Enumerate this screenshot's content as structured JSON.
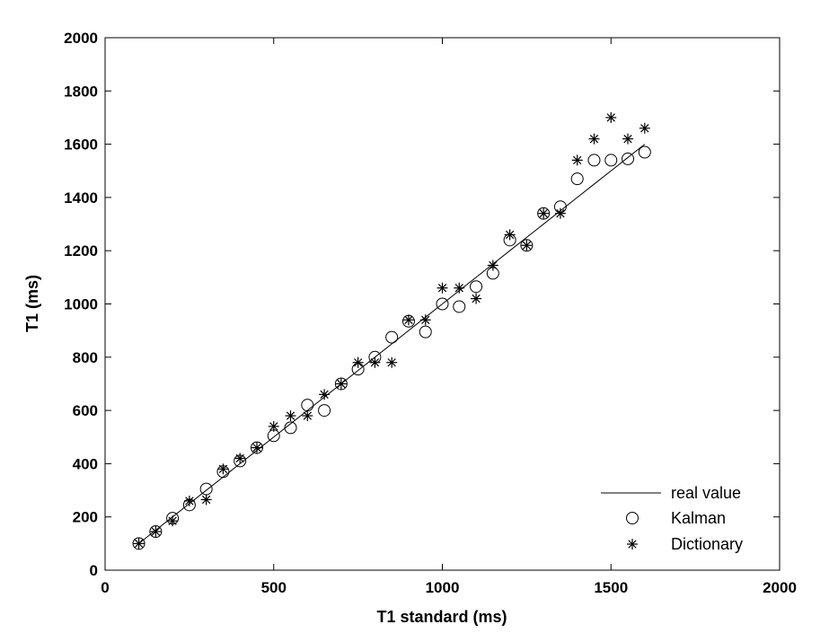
{
  "chart_data": {
    "type": "scatter",
    "xlabel": "T1 standard (ms)",
    "ylabel": "T1 (ms)",
    "xlim": [
      0,
      2000
    ],
    "ylim": [
      0,
      2000
    ],
    "xticks": [
      0,
      500,
      1000,
      1500,
      2000
    ],
    "yticks": [
      0,
      200,
      400,
      600,
      800,
      1000,
      1200,
      1400,
      1600,
      1800,
      2000
    ],
    "grid": false,
    "legend_position": "bottom-right",
    "series": [
      {
        "name": "real value",
        "style": "line",
        "color": "#000000",
        "x": [
          100,
          150,
          200,
          250,
          300,
          350,
          400,
          450,
          500,
          550,
          600,
          650,
          700,
          750,
          800,
          850,
          900,
          950,
          1000,
          1050,
          1100,
          1150,
          1200,
          1250,
          1300,
          1350,
          1400,
          1450,
          1500,
          1550,
          1600
        ],
        "y": [
          100,
          150,
          200,
          250,
          300,
          350,
          400,
          450,
          500,
          550,
          600,
          650,
          700,
          750,
          800,
          850,
          900,
          950,
          1000,
          1050,
          1100,
          1150,
          1200,
          1250,
          1300,
          1350,
          1400,
          1450,
          1500,
          1550,
          1600
        ]
      },
      {
        "name": "Kalman",
        "style": "circle",
        "color": "#000000",
        "x": [
          100,
          150,
          200,
          250,
          300,
          350,
          400,
          450,
          500,
          550,
          600,
          650,
          700,
          750,
          800,
          850,
          900,
          950,
          1000,
          1050,
          1100,
          1150,
          1200,
          1250,
          1300,
          1350,
          1400,
          1450,
          1500,
          1550,
          1600
        ],
        "y": [
          100,
          145,
          195,
          245,
          305,
          370,
          410,
          460,
          505,
          535,
          620,
          600,
          700,
          755,
          800,
          875,
          935,
          895,
          1000,
          990,
          1065,
          1115,
          1240,
          1220,
          1340,
          1365,
          1470,
          1540,
          1540,
          1545,
          1570
        ]
      },
      {
        "name": "Dictionary",
        "style": "asterisk",
        "color": "#000000",
        "x": [
          100,
          150,
          200,
          250,
          300,
          350,
          400,
          450,
          500,
          550,
          600,
          650,
          700,
          750,
          800,
          850,
          900,
          950,
          1000,
          1050,
          1100,
          1150,
          1200,
          1250,
          1300,
          1350,
          1400,
          1450,
          1500,
          1550,
          1600
        ],
        "y": [
          100,
          145,
          185,
          260,
          265,
          380,
          420,
          460,
          540,
          580,
          580,
          660,
          700,
          780,
          780,
          780,
          940,
          940,
          1060,
          1060,
          1020,
          1145,
          1260,
          1220,
          1340,
          1340,
          1540,
          1620,
          1700,
          1620,
          1660
        ]
      }
    ]
  }
}
